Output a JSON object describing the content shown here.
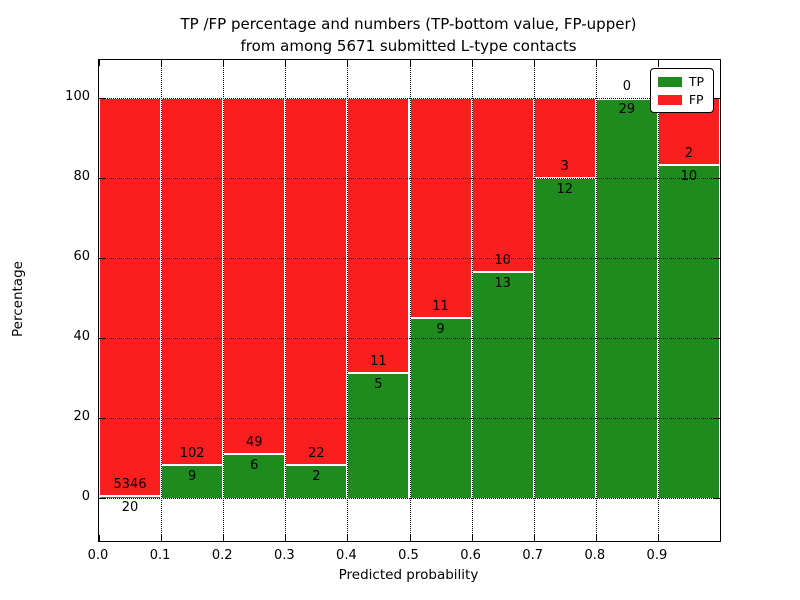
{
  "figure": {
    "title_line1": "TP /FP percentage and numbers (TP-bottom value, FP-upper)",
    "title_line2": "from among 5671 submitted L-type contacts",
    "xlabel": "Predicted probability",
    "ylabel": "Percentage"
  },
  "legend": {
    "items": [
      {
        "label": "TP",
        "color": "#1f8b1f"
      },
      {
        "label": "FP",
        "color": "#fb1e1e"
      }
    ]
  },
  "chart_data": {
    "type": "bar",
    "stacked": true,
    "title": "TP /FP percentage and numbers (TP-bottom value, FP-upper) from among 5671 submitted L-type contacts",
    "xlabel": "Predicted probability",
    "ylabel": "Percentage",
    "total_contacts": 5671,
    "bin_width": 0.1,
    "xlim": [
      0.0,
      1.0
    ],
    "ylim": [
      -10.8,
      109.6
    ],
    "grid": true,
    "grid_style": "dotted",
    "legend_position": "upper right",
    "x_tick_labels": [
      "0.0",
      "0.1",
      "0.2",
      "0.3",
      "0.4",
      "0.5",
      "0.6",
      "0.7",
      "0.8",
      "0.9"
    ],
    "y_tick_values": [
      0,
      20,
      40,
      60,
      80,
      100
    ],
    "categories": [
      0.0,
      0.1,
      0.2,
      0.3,
      0.4,
      0.5,
      0.6,
      0.7,
      0.8,
      0.9
    ],
    "series": [
      {
        "name": "TP",
        "color": "#1f8b1f",
        "counts": [
          20,
          9,
          6,
          2,
          5,
          9,
          13,
          12,
          29,
          10
        ],
        "percent": [
          0.37,
          8.11,
          10.91,
          8.33,
          31.25,
          45.0,
          56.52,
          80.0,
          100.0,
          83.33
        ]
      },
      {
        "name": "FP",
        "color": "#fb1e1e",
        "counts": [
          5346,
          102,
          49,
          22,
          11,
          11,
          10,
          3,
          0,
          2
        ],
        "percent": [
          99.63,
          91.89,
          89.09,
          91.67,
          68.75,
          55.0,
          43.48,
          20.0,
          0.0,
          16.67
        ]
      }
    ]
  }
}
